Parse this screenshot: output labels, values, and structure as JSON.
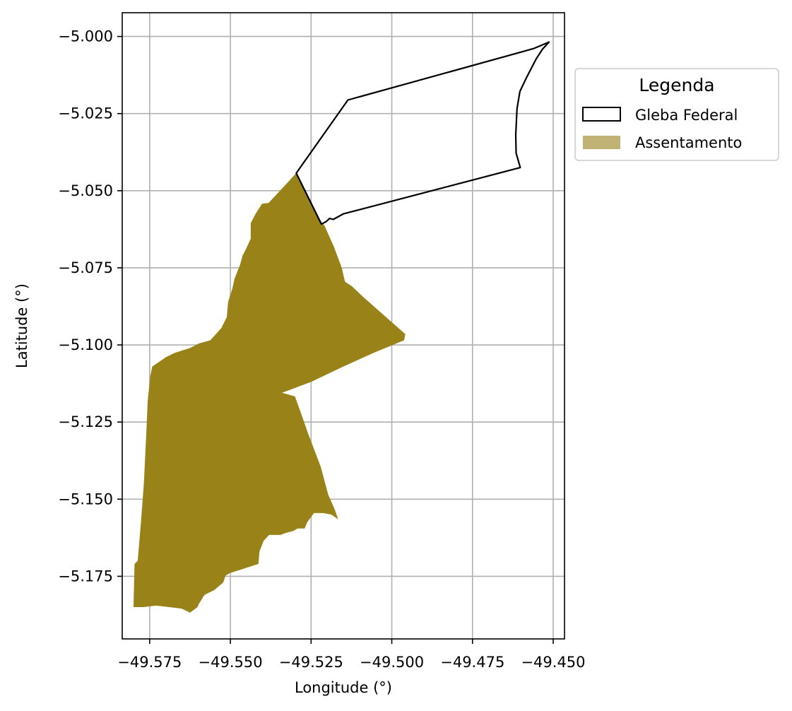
{
  "chart_data": {
    "type": "map",
    "xlabel": "Longitude (°)",
    "ylabel": "Latitude (°)",
    "xlim": [
      -49.5835,
      -49.4465
    ],
    "ylim": [
      -5.1953,
      -4.9923
    ],
    "x_ticks": [
      -49.575,
      -49.55,
      -49.525,
      -49.5,
      -49.475,
      -49.45
    ],
    "x_tick_labels": [
      "−49.575",
      "−49.550",
      "−49.525",
      "−49.500",
      "−49.475",
      "−49.450"
    ],
    "y_ticks": [
      -5.0,
      -5.025,
      -5.05,
      -5.075,
      -5.1,
      -5.125,
      -5.15,
      -5.175
    ],
    "y_tick_labels": [
      "−5.000",
      "−5.025",
      "−5.050",
      "−5.075",
      "−5.100",
      "−5.125",
      "−5.150",
      "−5.175"
    ],
    "grid": true,
    "legend": {
      "title": "Legenda",
      "placement": "outside upper right",
      "entries": [
        {
          "label": "Gleba Federal",
          "style": "outline"
        },
        {
          "label": "Assentamento",
          "style": "fill"
        }
      ]
    },
    "layers": [
      {
        "name": "Gleba Federal",
        "fill": "none",
        "stroke": "#000000",
        "coordinates": [
          [
            -49.5296,
            -5.0443
          ],
          [
            -49.5136,
            -5.0206
          ],
          [
            -49.4587,
            -5.0047
          ],
          [
            -49.456,
            -5.0039
          ],
          [
            -49.4513,
            -5.0018
          ],
          [
            -49.4533,
            -5.0041
          ],
          [
            -49.4553,
            -5.0073
          ],
          [
            -49.4582,
            -5.0132
          ],
          [
            -49.4603,
            -5.0178
          ],
          [
            -49.4612,
            -5.0234
          ],
          [
            -49.4616,
            -5.0318
          ],
          [
            -49.4615,
            -5.0378
          ],
          [
            -49.4602,
            -5.0425
          ],
          [
            -49.515,
            -5.0575
          ],
          [
            -49.5181,
            -5.0593
          ],
          [
            -49.5193,
            -5.059
          ],
          [
            -49.5203,
            -5.06
          ],
          [
            -49.5218,
            -5.0608
          ],
          [
            -49.5296,
            -5.0443
          ]
        ]
      },
      {
        "name": "Assentamento",
        "fill": "#998318",
        "legend_fill": "#c0b274",
        "stroke": "none",
        "coordinates": [
          [
            -49.5296,
            -5.0443
          ],
          [
            -49.5346,
            -5.05
          ],
          [
            -49.5382,
            -5.054
          ],
          [
            -49.5402,
            -5.0542
          ],
          [
            -49.5422,
            -5.0575
          ],
          [
            -49.5437,
            -5.0605
          ],
          [
            -49.5437,
            -5.0655
          ],
          [
            -49.5452,
            -5.069
          ],
          [
            -49.5462,
            -5.071
          ],
          [
            -49.547,
            -5.074
          ],
          [
            -49.5487,
            -5.0785
          ],
          [
            -49.5494,
            -5.0818
          ],
          [
            -49.5507,
            -5.086
          ],
          [
            -49.5511,
            -5.091
          ],
          [
            -49.5528,
            -5.0945
          ],
          [
            -49.5562,
            -5.0985
          ],
          [
            -49.5597,
            -5.0995
          ],
          [
            -49.5625,
            -5.101
          ],
          [
            -49.5673,
            -5.1026
          ],
          [
            -49.57,
            -5.104
          ],
          [
            -49.5742,
            -5.107
          ],
          [
            -49.5748,
            -5.11
          ],
          [
            -49.5756,
            -5.118
          ],
          [
            -49.5761,
            -5.13
          ],
          [
            -49.5768,
            -5.145
          ],
          [
            -49.5777,
            -5.1575
          ],
          [
            -49.5787,
            -5.17
          ],
          [
            -49.5797,
            -5.171
          ],
          [
            -49.58,
            -5.185
          ],
          [
            -49.577,
            -5.185
          ],
          [
            -49.573,
            -5.1845
          ],
          [
            -49.569,
            -5.185
          ],
          [
            -49.565,
            -5.1855
          ],
          [
            -49.5625,
            -5.1868
          ],
          [
            -49.5602,
            -5.185
          ],
          [
            -49.5598,
            -5.184
          ],
          [
            -49.558,
            -5.181
          ],
          [
            -49.555,
            -5.1795
          ],
          [
            -49.5522,
            -5.177
          ],
          [
            -49.5515,
            -5.1748
          ],
          [
            -49.5502,
            -5.174
          ],
          [
            -49.5443,
            -5.172
          ],
          [
            -49.5413,
            -5.171
          ],
          [
            -49.541,
            -5.167
          ],
          [
            -49.5397,
            -5.1635
          ],
          [
            -49.538,
            -5.1616
          ],
          [
            -49.5345,
            -5.1616
          ],
          [
            -49.533,
            -5.161
          ],
          [
            -49.5305,
            -5.1603
          ],
          [
            -49.5292,
            -5.1595
          ],
          [
            -49.527,
            -5.1595
          ],
          [
            -49.5262,
            -5.1575
          ],
          [
            -49.5241,
            -5.1545
          ],
          [
            -49.5213,
            -5.1545
          ],
          [
            -49.5187,
            -5.155
          ],
          [
            -49.5166,
            -5.1565
          ],
          [
            -49.5176,
            -5.1535
          ],
          [
            -49.5197,
            -5.1485
          ],
          [
            -49.522,
            -5.1395
          ],
          [
            -49.526,
            -5.1285
          ],
          [
            -49.528,
            -5.1225
          ],
          [
            -49.53,
            -5.1167
          ],
          [
            -49.534,
            -5.1155
          ],
          [
            -49.525,
            -5.112
          ],
          [
            -49.515,
            -5.107
          ],
          [
            -49.5055,
            -5.1025
          ],
          [
            -49.4962,
            -5.0985
          ],
          [
            -49.4958,
            -5.0965
          ],
          [
            -49.5088,
            -5.0845
          ],
          [
            -49.5123,
            -5.081
          ],
          [
            -49.5145,
            -5.0795
          ],
          [
            -49.5155,
            -5.075
          ],
          [
            -49.518,
            -5.068
          ],
          [
            -49.521,
            -5.061
          ],
          [
            -49.5218,
            -5.0608
          ],
          [
            -49.5296,
            -5.0443
          ]
        ]
      }
    ]
  }
}
